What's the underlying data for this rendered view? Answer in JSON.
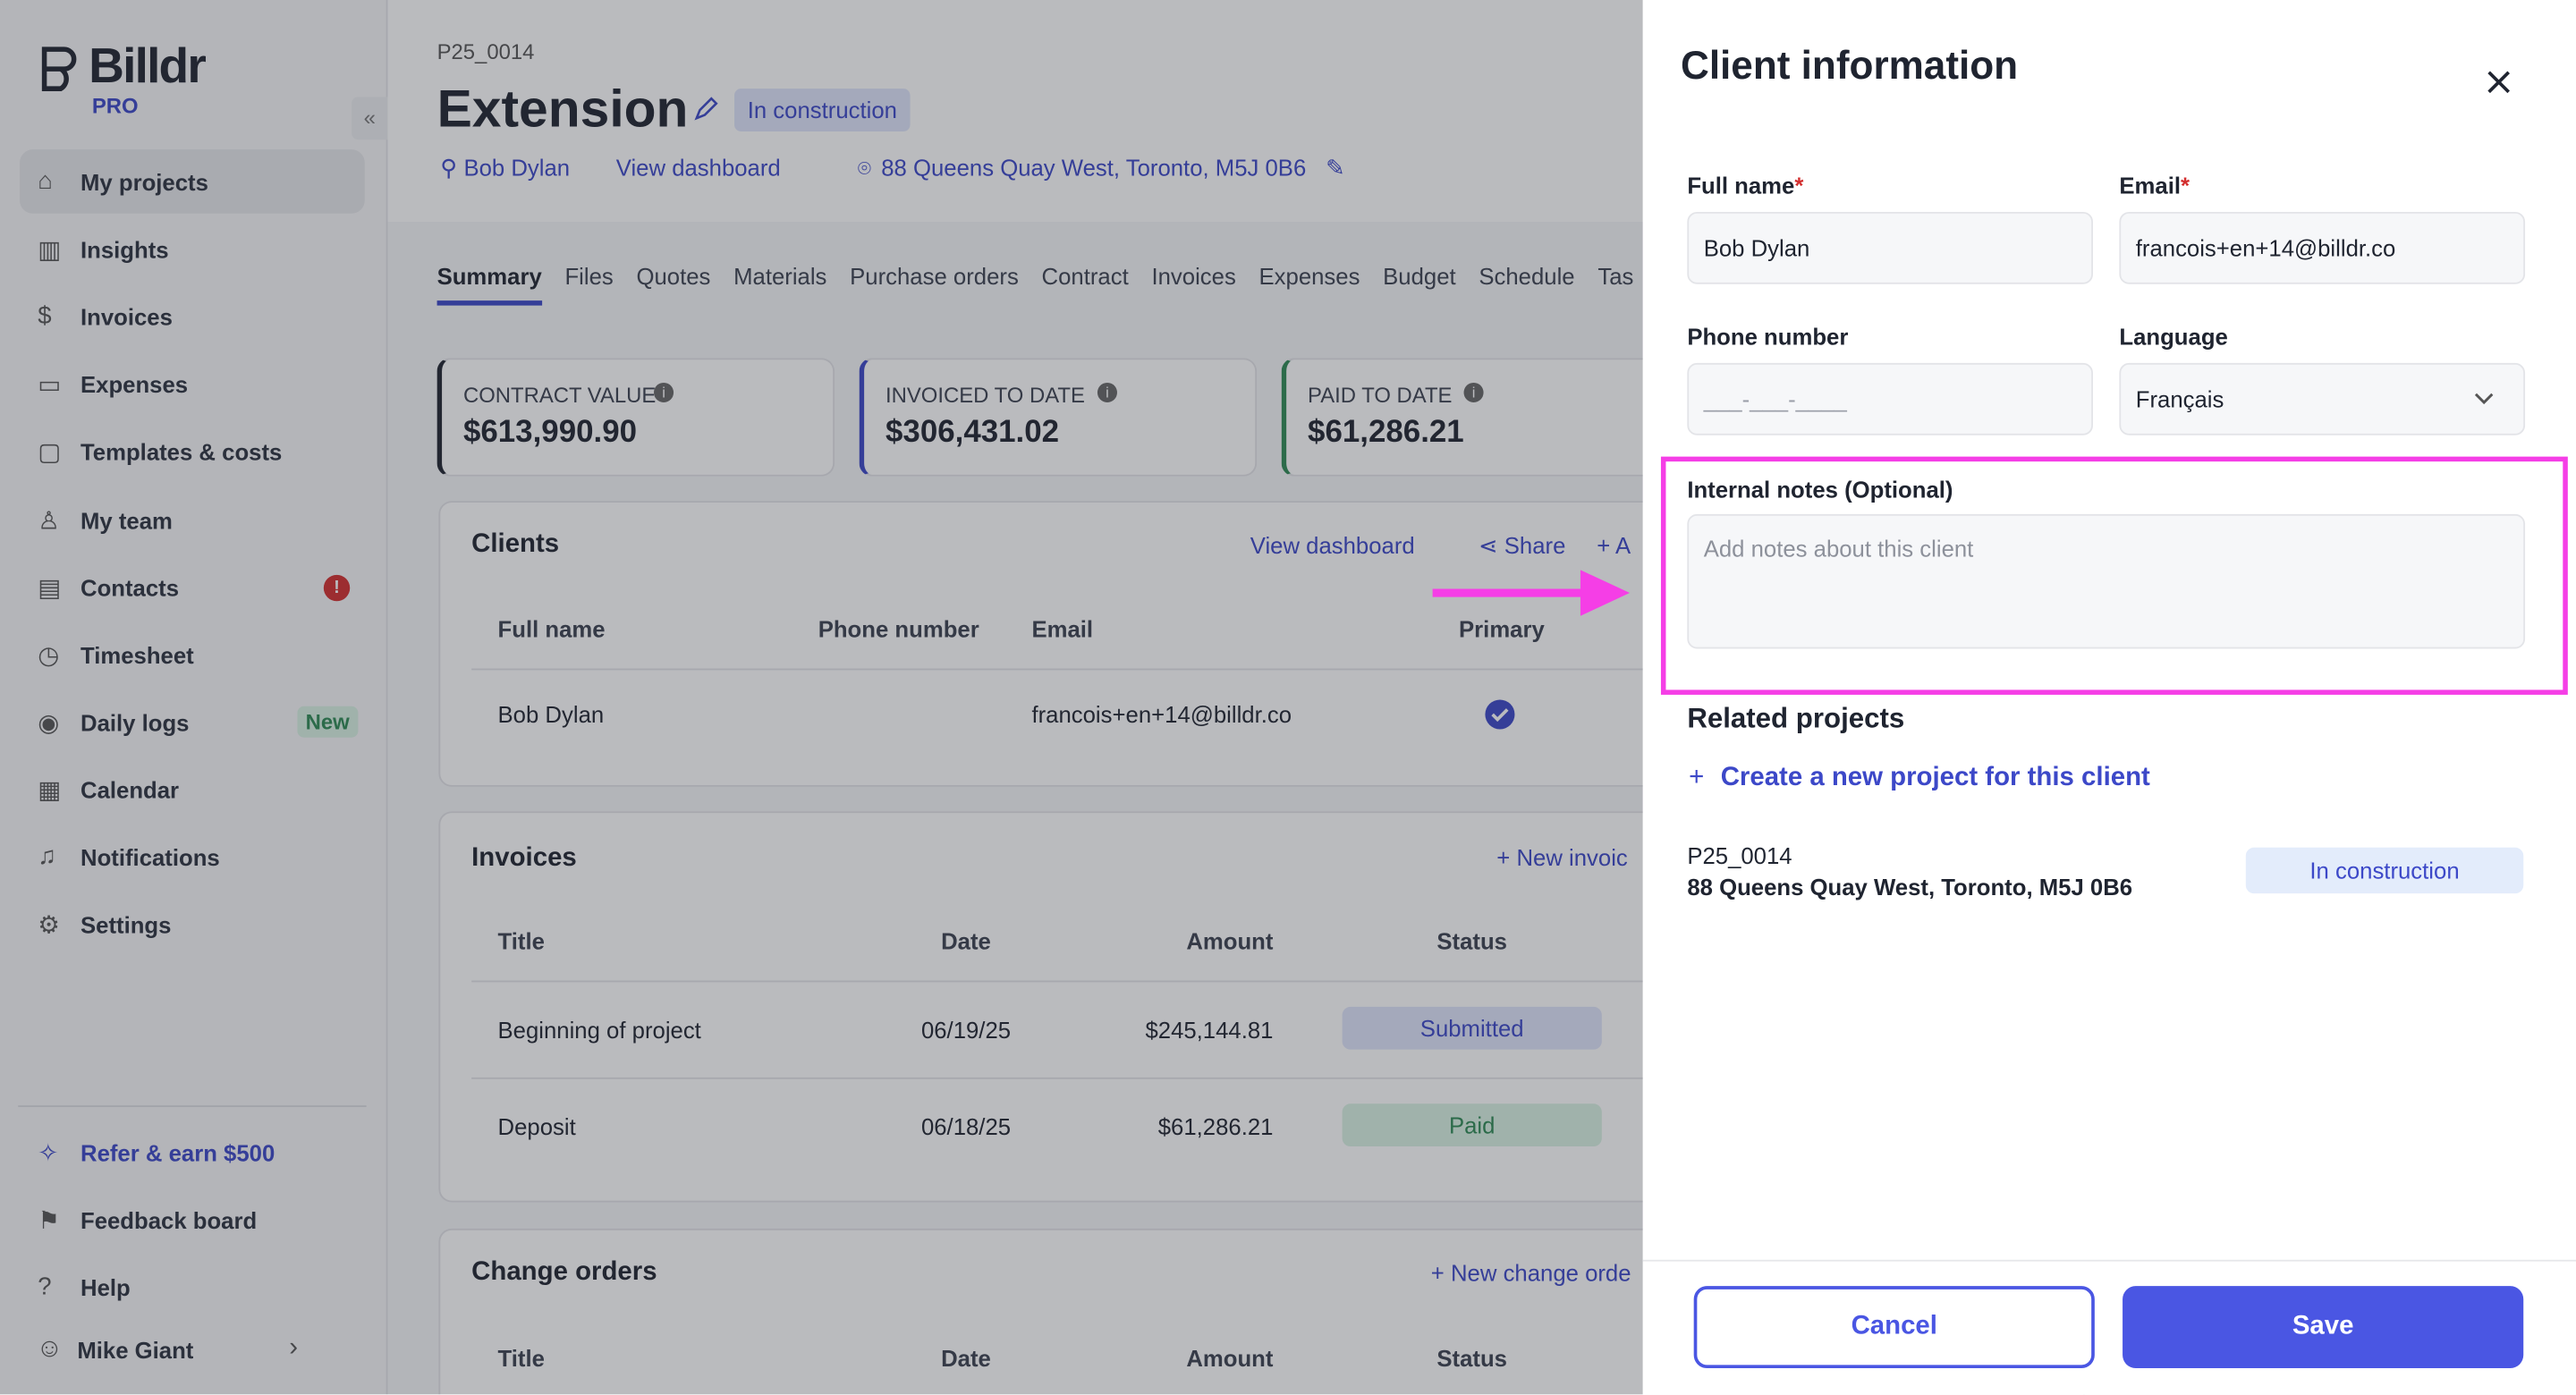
{
  "sidebar": {
    "logo": "Billdr",
    "logo_badge": "PRO",
    "nav": [
      {
        "label": "My projects"
      },
      {
        "label": "Insights"
      },
      {
        "label": "Invoices"
      },
      {
        "label": "Expenses"
      },
      {
        "label": "Templates & costs"
      },
      {
        "label": "My team"
      },
      {
        "label": "Contacts",
        "alert": "!"
      },
      {
        "label": "Timesheet"
      },
      {
        "label": "Daily logs",
        "badge": "New"
      },
      {
        "label": "Calendar"
      },
      {
        "label": "Notifications"
      },
      {
        "label": "Settings"
      }
    ],
    "footer": [
      "Refer & earn $500",
      "Feedback board",
      "Help"
    ],
    "user": "Mike Giant"
  },
  "project": {
    "code": "P25_0014",
    "title": "Extension",
    "status": "In construction",
    "client": "Bob Dylan",
    "dashboard_link": "View dashboard",
    "address": "88 Queens Quay West, Toronto, M5J 0B6"
  },
  "tabs": [
    "Summary",
    "Files",
    "Quotes",
    "Materials",
    "Purchase orders",
    "Contract",
    "Invoices",
    "Expenses",
    "Budget",
    "Schedule",
    "Tas"
  ],
  "stats": [
    {
      "label": "CONTRACT VALUE",
      "value": "$613,990.90"
    },
    {
      "label": "INVOICED TO DATE",
      "value": "$306,431.02"
    },
    {
      "label": "PAID TO DATE",
      "value": "$61,286.21"
    }
  ],
  "clients": {
    "title": "Clients",
    "actions": [
      "View dashboard",
      "Share",
      "A"
    ],
    "headers": [
      "Full name",
      "Phone number",
      "Email",
      "Primary"
    ],
    "row": {
      "name": "Bob Dylan",
      "email": "francois+en+14@billdr.co"
    }
  },
  "invoices": {
    "title": "Invoices",
    "action": "New invoic",
    "headers": [
      "Title",
      "Date",
      "Amount",
      "Status"
    ],
    "rows": [
      [
        "Beginning of project",
        "06/19/25",
        "$245,144.81",
        "Submitted"
      ],
      [
        "Deposit",
        "06/18/25",
        "$61,286.21",
        "Paid"
      ]
    ]
  },
  "change_orders": {
    "title": "Change orders",
    "action": "New change orde",
    "headers": [
      "Title",
      "Date",
      "Amount",
      "Status"
    ]
  },
  "panel": {
    "title": "Client information",
    "required_mark": "*",
    "full_name": {
      "label": "Full name",
      "value": "Bob Dylan"
    },
    "email": {
      "label": "Email",
      "value": "francois+en+14@billdr.co"
    },
    "phone": {
      "label": "Phone number",
      "placeholder": "___-___-____"
    },
    "language": {
      "label": "Language",
      "value": "Français"
    },
    "notes": {
      "label": "Internal notes (Optional)",
      "placeholder": "Add notes about this client"
    },
    "related_title": "Related projects",
    "create_link": "Create a new project for this client",
    "related": {
      "code": "P25_0014",
      "address": "88 Queens Quay West, Toronto, M5J 0B6",
      "status": "In construction"
    },
    "cancel": "Cancel",
    "save": "Save"
  }
}
